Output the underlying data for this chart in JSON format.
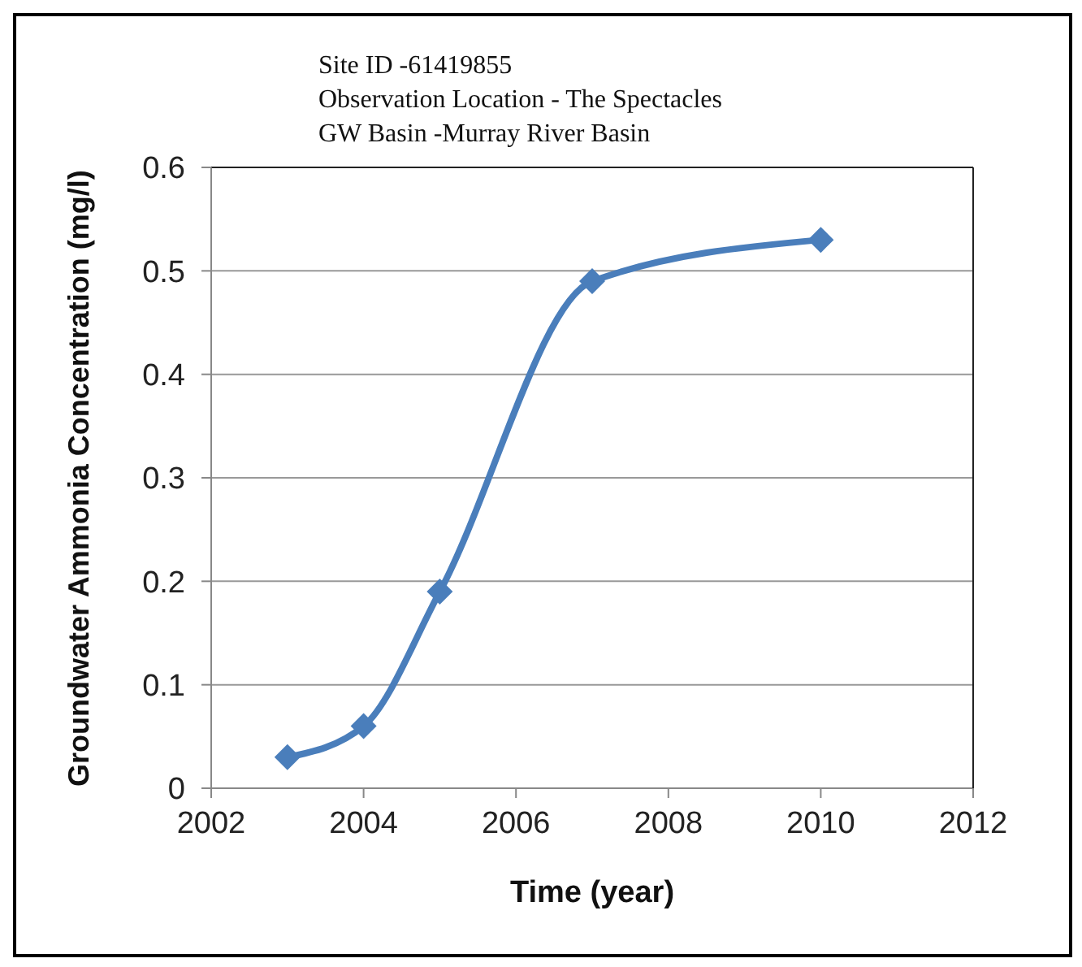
{
  "chart_data": {
    "type": "line",
    "title": "Site ID -61419855",
    "subtitle": "Observation Location - The Spectacles",
    "annotations": [
      "GW Basin -Murray River Basin"
    ],
    "xlabel": "Time (year)",
    "ylabel": "Groundwater Ammonia Concentration (mg/l)",
    "x": [
      2003,
      2004,
      2005,
      2007,
      2010
    ],
    "series": [
      {
        "color": "#4a7ebb",
        "values": [
          0.03,
          0.06,
          0.19,
          0.49,
          0.53
        ]
      }
    ],
    "xlim": [
      2002,
      2012
    ],
    "xticks": [
      2002,
      2004,
      2006,
      2008,
      2010,
      2012
    ],
    "ylim": [
      0,
      0.6
    ],
    "yticks": [
      0,
      0.1,
      0.2,
      0.3,
      0.4,
      0.5,
      0.6
    ],
    "grid": "y",
    "legend": false,
    "marker": "diamond",
    "line_style": "solid"
  }
}
